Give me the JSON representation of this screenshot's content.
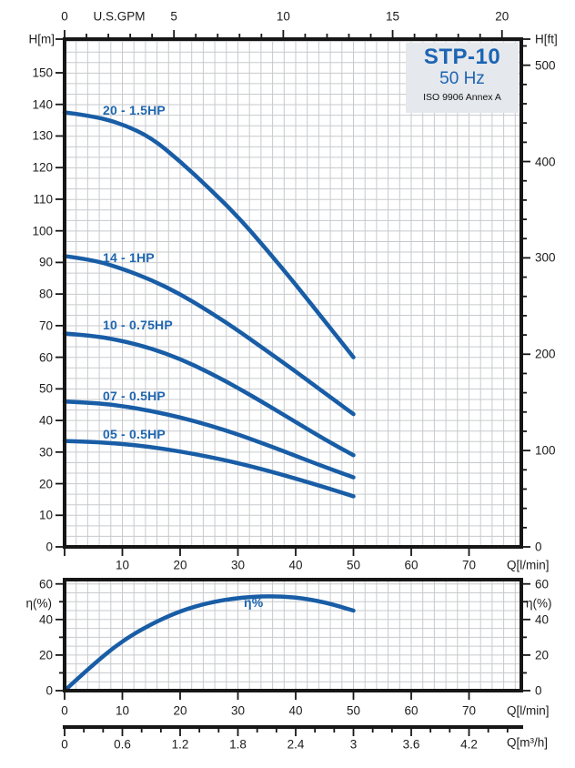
{
  "title_box": {
    "model": "STP-10",
    "frequency": "50 Hz",
    "standard": "ISO 9906 Annex A"
  },
  "colors": {
    "curve": "#185da6",
    "curve_label": "#1f66b0",
    "title_text": "#1c64b4",
    "title_box_bg": "#e5e8ec",
    "grid": "#c7cacd",
    "axis": "#161616",
    "tick_text": "#1d1d1d"
  },
  "chart_data": [
    {
      "type": "line",
      "title": "STP-10 50 Hz pump head curves",
      "xlabel": "Q[l/min]",
      "xlabel_top": "U.S.GPM",
      "ylabel": "H[m]",
      "ylabel_right": "H[ft]",
      "xlim": [
        0,
        79
      ],
      "ylim": [
        0,
        160.7
      ],
      "grid": true,
      "x_ticks": [
        10,
        20,
        30,
        40,
        50,
        60,
        70
      ],
      "x_ticks_top_gpm": [
        0,
        5,
        10,
        15,
        20
      ],
      "y_ticks": [
        0,
        10,
        20,
        30,
        40,
        50,
        60,
        70,
        80,
        90,
        100,
        110,
        120,
        130,
        140,
        150
      ],
      "y_ticks_right_ft": [
        0,
        100,
        200,
        300,
        400,
        500
      ],
      "series": [
        {
          "name": "20 - 1.5HP",
          "points": [
            [
              0,
              137.5
            ],
            [
              5,
              136.3
            ],
            [
              10,
              133.8
            ],
            [
              15,
              129.5
            ],
            [
              20,
              122
            ],
            [
              25,
              113.5
            ],
            [
              30,
              104.5
            ],
            [
              35,
              94
            ],
            [
              40,
              83
            ],
            [
              45,
              71.5
            ],
            [
              50,
              60
            ]
          ]
        },
        {
          "name": "14 - 1HP",
          "points": [
            [
              0,
              92
            ],
            [
              5,
              90.8
            ],
            [
              10,
              88
            ],
            [
              15,
              84.5
            ],
            [
              20,
              80
            ],
            [
              25,
              74.5
            ],
            [
              30,
              68.5
            ],
            [
              35,
              62
            ],
            [
              40,
              55.5
            ],
            [
              45,
              48.7
            ],
            [
              50,
              42
            ]
          ]
        },
        {
          "name": "10 - 0.75HP",
          "points": [
            [
              0,
              67.5
            ],
            [
              5,
              66.8
            ],
            [
              10,
              65.2
            ],
            [
              15,
              62.8
            ],
            [
              20,
              59.5
            ],
            [
              25,
              55.2
            ],
            [
              30,
              50.3
            ],
            [
              35,
              45
            ],
            [
              40,
              39.5
            ],
            [
              45,
              34
            ],
            [
              50,
              29
            ]
          ]
        },
        {
          "name": "07 - 0.5HP",
          "points": [
            [
              0,
              46
            ],
            [
              5,
              45.6
            ],
            [
              10,
              44.6
            ],
            [
              15,
              43
            ],
            [
              20,
              41
            ],
            [
              25,
              38.5
            ],
            [
              30,
              35.6
            ],
            [
              35,
              32.3
            ],
            [
              40,
              28.8
            ],
            [
              45,
              25.3
            ],
            [
              50,
              22
            ]
          ]
        },
        {
          "name": "05 - 0.5HP",
          "points": [
            [
              0,
              33.5
            ],
            [
              5,
              33.2
            ],
            [
              10,
              32.6
            ],
            [
              15,
              31.6
            ],
            [
              20,
              30.2
            ],
            [
              25,
              28.5
            ],
            [
              30,
              26.5
            ],
            [
              35,
              24.2
            ],
            [
              40,
              21.6
            ],
            [
              45,
              18.9
            ],
            [
              50,
              16
            ]
          ]
        }
      ]
    },
    {
      "type": "line",
      "title": "Efficiency curve",
      "xlabel": "Q[l/min]",
      "xlabel_secondary": "Q[m³/h]",
      "ylabel": "η(%)",
      "ylabel_right": "η(%)",
      "xlim": [
        0,
        79
      ],
      "ylim": [
        0,
        62.4
      ],
      "grid": true,
      "x_ticks": [
        0,
        10,
        20,
        30,
        40,
        50,
        60,
        70
      ],
      "y_ticks": [
        0,
        20,
        40,
        60
      ],
      "x_ticks_m3h": [
        "0",
        "0.6",
        "1.2",
        "1.8",
        "2.4",
        "3",
        "3.6",
        "4.2"
      ],
      "series": [
        {
          "name": "η%",
          "points": [
            [
              0,
              0
            ],
            [
              5,
              15
            ],
            [
              10,
              28
            ],
            [
              15,
              37.5
            ],
            [
              20,
              44.8
            ],
            [
              25,
              49.5
            ],
            [
              30,
              52.2
            ],
            [
              35,
              53.2
            ],
            [
              40,
              52.5
            ],
            [
              45,
              49.8
            ],
            [
              50,
              45
            ]
          ]
        }
      ]
    }
  ]
}
